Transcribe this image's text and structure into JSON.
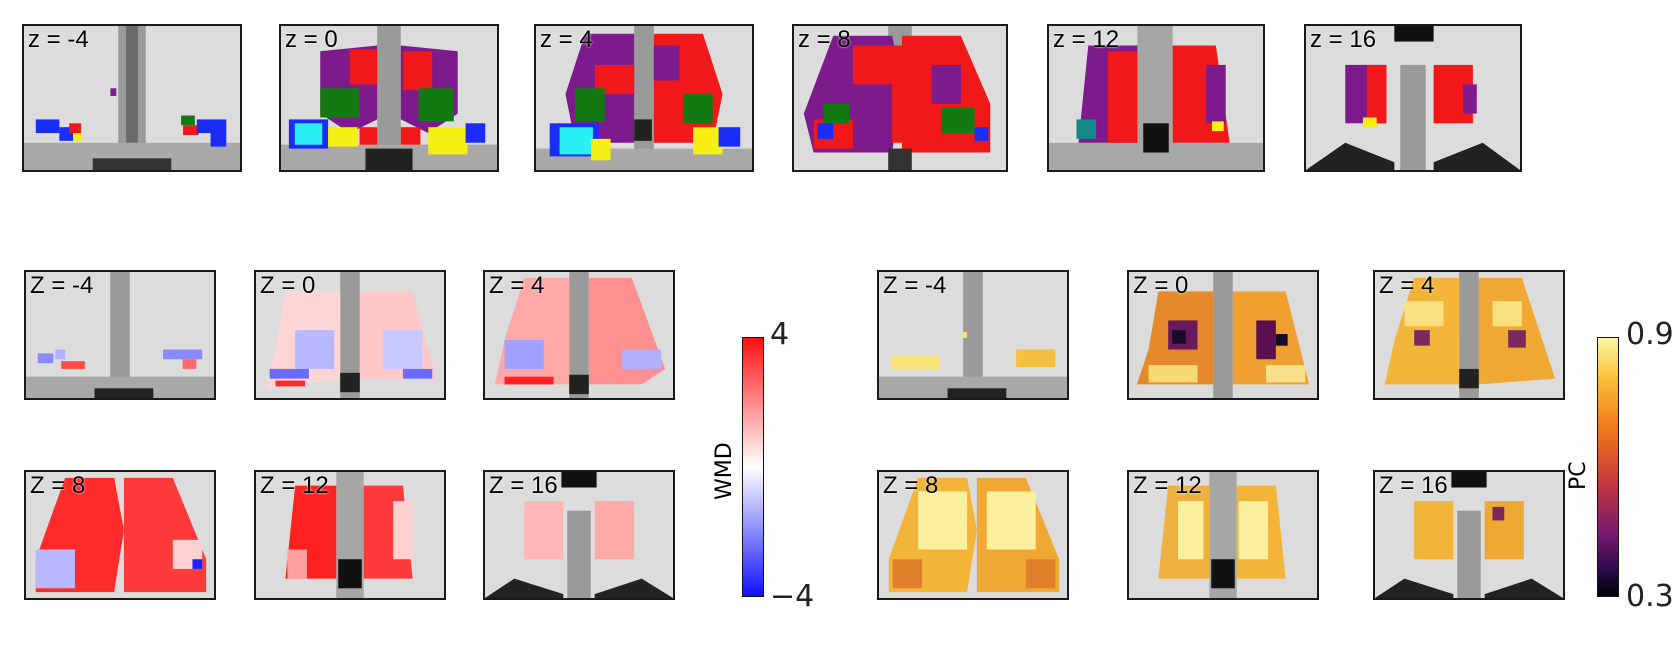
{
  "top_row": {
    "labels": [
      "z = -4",
      "z = 0",
      "z = 4",
      "z = 8",
      "z = 12",
      "z = 16"
    ]
  },
  "wmd_grid": {
    "labels": [
      "Z = -4",
      "Z = 0",
      "Z = 4",
      "Z = 8",
      "Z = 12",
      "Z = 16"
    ],
    "colorbar": {
      "label": "WMD",
      "max": "4",
      "min": "−4"
    }
  },
  "pc_grid": {
    "labels": [
      "Z = -4",
      "Z = 0",
      "Z = 4",
      "Z = 8",
      "Z = 12",
      "Z = 16"
    ],
    "colorbar": {
      "label": "PC",
      "max": "0.9",
      "min": "0.3"
    }
  },
  "colors": {
    "community_purple": "#7d1a8c",
    "community_red": "#f01818",
    "community_green": "#137a13",
    "community_blue": "#1a2cf5",
    "community_cyan": "#2af0f5",
    "community_yellow": "#f5ef14",
    "community_teal": "#138a8a",
    "wmd_high": "#ff1010",
    "wmd_low": "#1010ff",
    "pc_high": "#fbf6a0",
    "pc_low": "#000004"
  }
}
